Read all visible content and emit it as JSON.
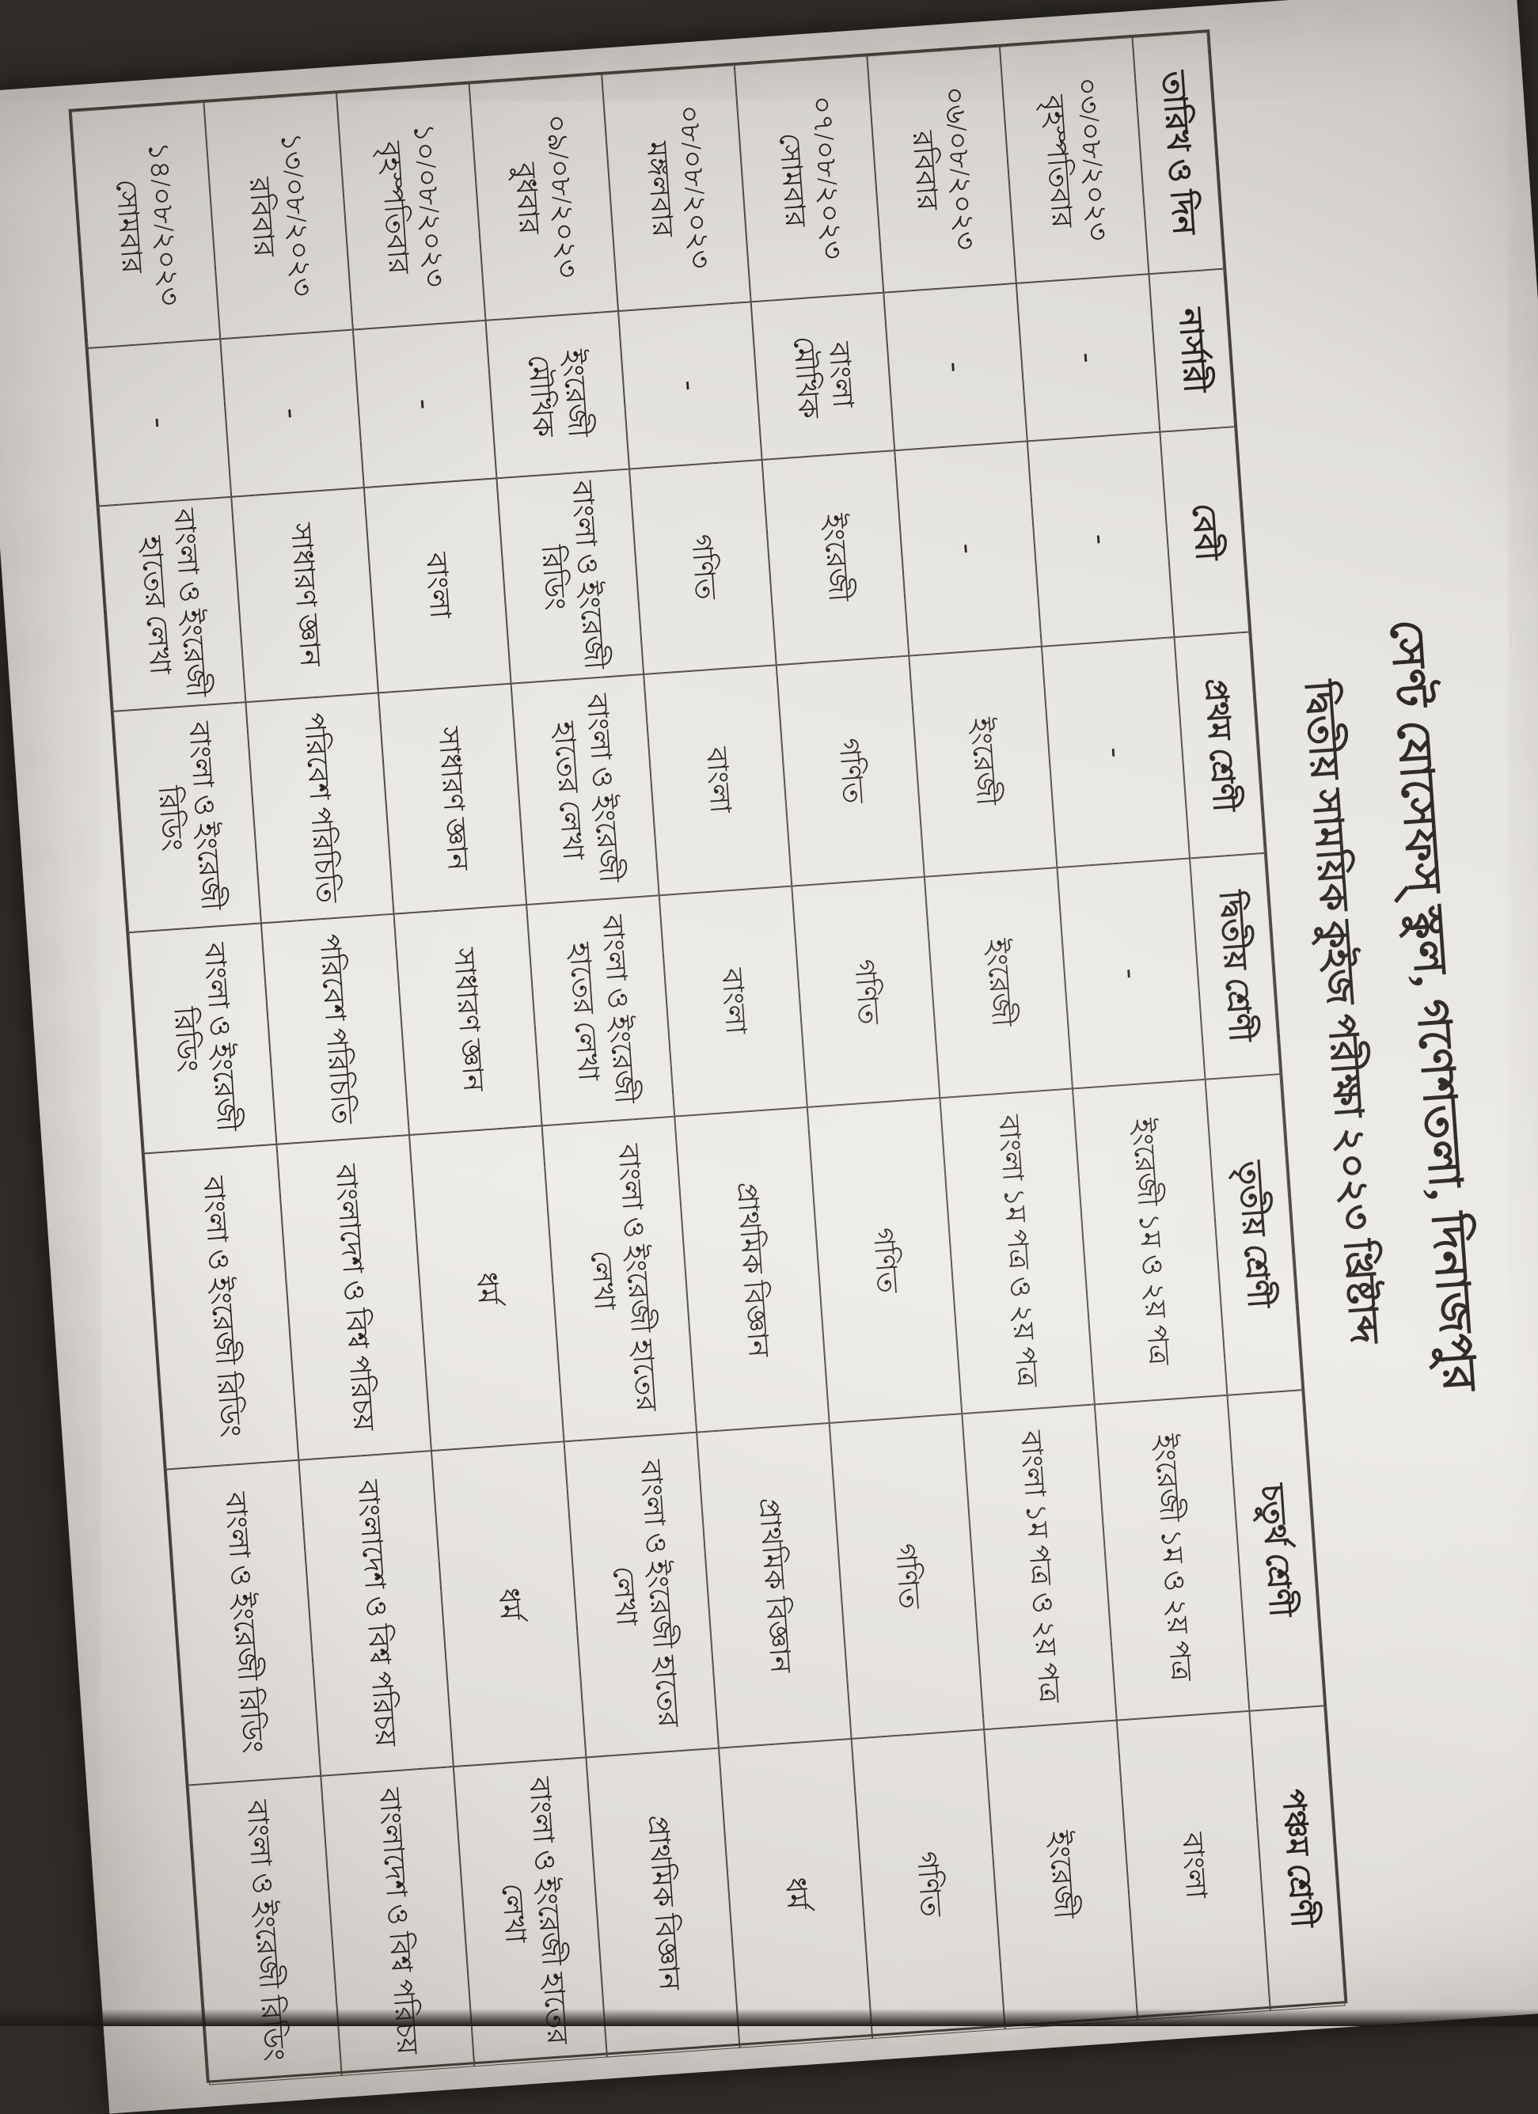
{
  "document": {
    "kind": "photographed exam schedule paper, rotated sideways in frame",
    "school_title": "সেণ্ট যোসেফস্ স্কুল, গণেশতলা, দিনাজপুর",
    "exam_title": "দ্বিতীয় সাময়িক কুইজ পরীক্ষা ২০২৩ খ্রিষ্টাব্দ"
  },
  "table": {
    "columns": [
      "তারিখ ও দিন",
      "নার্সারী",
      "বেবী",
      "প্রথম শ্রেণী",
      "দ্বিতীয় শ্রেণী",
      "তৃতীয় শ্রেণী",
      "চতুর্থ শ্রেণী",
      "পঞ্চম শ্রেণী"
    ],
    "rows": [
      {
        "date": "০৩/০৮/২০২৩",
        "day": "বৃহস্পতিবার",
        "subjects": [
          "-",
          "-",
          "-",
          "-",
          "ইংরেজী ১ম ও ২য় পত্র",
          "ইংরেজী ১ম ও ২য় পত্র",
          "বাংলা"
        ]
      },
      {
        "date": "০৬/০৮/২০২৩",
        "day": "রবিবার",
        "subjects": [
          "-",
          "-",
          "ইংরেজী",
          "ইংরেজী",
          "বাংলা ১ম পত্র ও ২য় পত্র",
          "বাংলা ১ম পত্র ও ২য় পত্র",
          "ইংরেজী"
        ]
      },
      {
        "date": "০৭/০৮/২০২৩",
        "day": "সোমবার",
        "subjects": [
          "বাংলা মৌখিক",
          "ইংরেজী",
          "গণিত",
          "গণিত",
          "গণিত",
          "গণিত",
          "গণিত"
        ]
      },
      {
        "date": "০৮/০৮/২০২৩",
        "day": "মঙ্গলবার",
        "subjects": [
          "-",
          "গণিত",
          "বাংলা",
          "বাংলা",
          "প্রাথমিক বিজ্ঞান",
          "প্রাথমিক বিজ্ঞান",
          "ধর্ম"
        ]
      },
      {
        "date": "০৯/০৮/২০২৩",
        "day": "বুধবার",
        "subjects": [
          "ইংরেজী মৌখিক",
          "বাংলা ও ইংরেজী রিডিং",
          "বাংলা ও ইংরেজী হাতের লেখা",
          "বাংলা ও ইংরেজী হাতের লেখা",
          "বাংলা ও ইংরেজী হাতের লেখা",
          "বাংলা ও ইংরেজী হাতের লেখা",
          "প্রাথমিক বিজ্ঞান"
        ]
      },
      {
        "date": "১০/০৮/২০২৩",
        "day": "বৃহস্পতিবার",
        "subjects": [
          "-",
          "বাংলা",
          "সাধারণ জ্ঞান",
          "সাধারণ জ্ঞান",
          "ধর্ম",
          "ধর্ম",
          "বাংলা ও ইংরেজী হাতের লেখা"
        ]
      },
      {
        "date": "১৩/০৮/২০২৩",
        "day": "রবিবার",
        "subjects": [
          "-",
          "সাধারণ জ্ঞান",
          "পরিবেশ পরিচিতি",
          "পরিবেশ পরিচিতি",
          "বাংলাদেশ ও বিশ্ব পরিচয়",
          "বাংলাদেশ ও বিশ্ব পরিচয়",
          "বাংলাদেশ ও বিশ্ব পরিচয়"
        ]
      },
      {
        "date": "১৪/০৮/২০২৩",
        "day": "সোমবার",
        "subjects": [
          "-",
          "বাংলা ও ইংরেজী হাতের লেখা",
          "বাংলা ও ইংরেজী রিডিং",
          "বাংলা ও ইংরেজী রিডিং",
          "বাংলা ও ইংরেজী রিডিং",
          "বাংলা ও ইংরেজী রিডিং",
          "বাংলা ও ইংরেজী রিডিং"
        ]
      }
    ]
  },
  "colors": {
    "paper": "#e7e5e1",
    "ink": "#262220",
    "grid_line": "#4a443c",
    "photo_background": "#2f2c28"
  }
}
